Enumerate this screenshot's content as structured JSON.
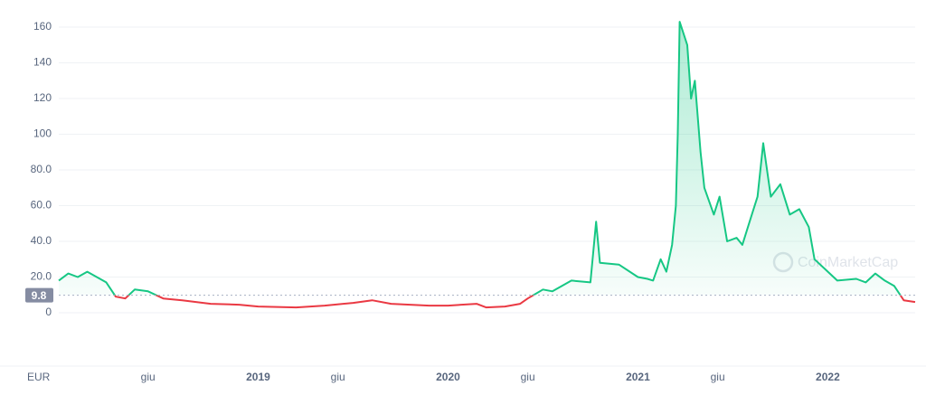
{
  "chart_data": {
    "type": "line",
    "currency": "EUR",
    "watermark": "CoinMarketCap",
    "current_price": 9.8,
    "up_color": "#16c784",
    "down_color": "#ea3943",
    "x": [
      2017.95,
      2018.0,
      2018.05,
      2018.1,
      2018.15,
      2018.2,
      2018.25,
      2018.3,
      2018.35,
      2018.42,
      2018.5,
      2018.6,
      2018.75,
      2018.9,
      2019.0,
      2019.2,
      2019.35,
      2019.5,
      2019.6,
      2019.7,
      2019.9,
      2020.0,
      2020.15,
      2020.2,
      2020.3,
      2020.38,
      2020.42,
      2020.5,
      2020.55,
      2020.65,
      2020.75,
      2020.78,
      2020.8,
      2020.9,
      2021.0,
      2021.05,
      2021.08,
      2021.12,
      2021.15,
      2021.18,
      2021.2,
      2021.21,
      2021.22,
      2021.26,
      2021.28,
      2021.3,
      2021.33,
      2021.35,
      2021.4,
      2021.43,
      2021.47,
      2021.52,
      2021.55,
      2021.6,
      2021.63,
      2021.66,
      2021.7,
      2021.75,
      2021.8,
      2021.85,
      2021.9,
      2021.93,
      2021.98,
      2022.05,
      2022.15,
      2022.2,
      2022.25,
      2022.3,
      2022.35,
      2022.4,
      2022.46
    ],
    "values": [
      18,
      22,
      20,
      23,
      20,
      17,
      9,
      8,
      13,
      12,
      8,
      7,
      5,
      4.5,
      3.5,
      3,
      4,
      5.5,
      7,
      5,
      4,
      4,
      5,
      3,
      3.5,
      5,
      8,
      13,
      12,
      18,
      17,
      51,
      28,
      27,
      20,
      19,
      18,
      30,
      23,
      38,
      60,
      100,
      163,
      150,
      120,
      130,
      90,
      70,
      55,
      65,
      40,
      42,
      38,
      55,
      65,
      95,
      65,
      72,
      55,
      58,
      48,
      30,
      25,
      18,
      19,
      17,
      22,
      18,
      15,
      7,
      6
    ],
    "xlim": [
      2017.95,
      2022.46
    ],
    "xticks": [
      {
        "value": 2018.42,
        "label": "giu"
      },
      {
        "value": 2019.0,
        "label": "2019"
      },
      {
        "value": 2019.42,
        "label": "giu"
      },
      {
        "value": 2020.0,
        "label": "2020"
      },
      {
        "value": 2020.42,
        "label": "giu"
      },
      {
        "value": 2021.0,
        "label": "2021"
      },
      {
        "value": 2021.42,
        "label": "giu"
      },
      {
        "value": 2022.0,
        "label": "2022"
      }
    ],
    "ylim": [
      0,
      160
    ],
    "yticks": [
      0,
      {
        "value": 20,
        "label": "20.0"
      },
      {
        "value": 40,
        "label": "40.0"
      },
      {
        "value": 60,
        "label": "60.0"
      },
      {
        "value": 80,
        "label": "80.0"
      },
      100,
      120,
      140,
      160
    ],
    "grid": true
  }
}
